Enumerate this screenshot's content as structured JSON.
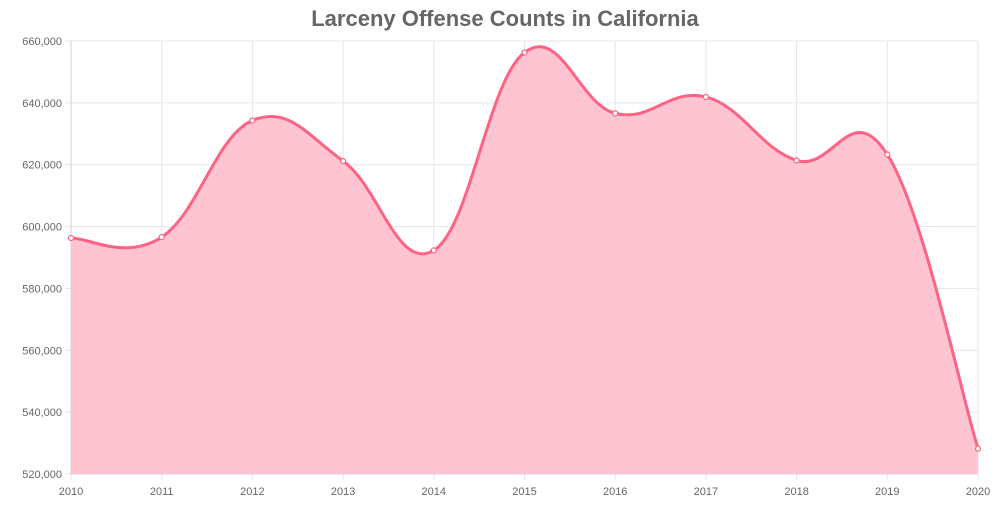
{
  "chart_data": {
    "type": "area",
    "title": "Larceny Offense Counts in California",
    "xlabel": "",
    "ylabel": "",
    "x": [
      "2010",
      "2011",
      "2012",
      "2013",
      "2014",
      "2015",
      "2016",
      "2017",
      "2018",
      "2019",
      "2020"
    ],
    "series": [
      {
        "values": [
          596300,
          596600,
          634300,
          621200,
          592300,
          656300,
          636600,
          641900,
          621400,
          623300,
          528200
        ],
        "line_color": "#ff6384",
        "fill_color": "#ffc4d1"
      }
    ],
    "ylim": [
      520000,
      660000
    ],
    "y_ticks": [
      "520,000",
      "540,000",
      "560,000",
      "580,000",
      "600,000",
      "620,000",
      "640,000",
      "660,000"
    ],
    "grid": true,
    "legend": "none"
  }
}
